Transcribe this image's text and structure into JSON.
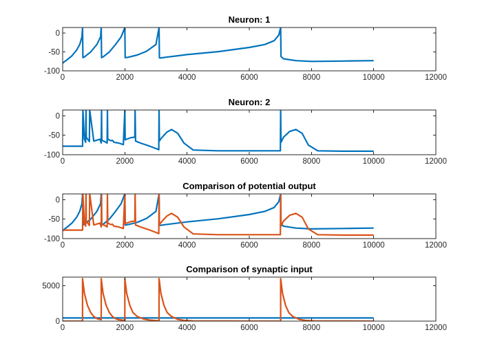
{
  "figure": {
    "background": "#ffffff"
  },
  "colors": {
    "blue": "#0072BD",
    "orange": "#D95319",
    "axis": "#262626"
  },
  "chart_data": [
    {
      "type": "line",
      "title": "Neuron: 1",
      "xlim": [
        0,
        12000
      ],
      "ylim": [
        -100,
        15
      ],
      "xticks": [
        0,
        2000,
        4000,
        6000,
        8000,
        10000,
        12000
      ],
      "yticks": [
        -100,
        -50,
        0
      ],
      "series": [
        {
          "color": "#0072BD",
          "x": [
            0,
            50,
            150,
            300,
            450,
            550,
            620,
            640,
            650,
            700,
            900,
            1100,
            1220,
            1240,
            1250,
            1300,
            1500,
            1700,
            1880,
            2000,
            2010,
            2030,
            2100,
            2400,
            2700,
            3000,
            3100,
            3110,
            3130,
            3300,
            4000,
            5000,
            6000,
            6500,
            6800,
            6950,
            7010,
            7020,
            7100,
            7500,
            8000,
            9000,
            10000
          ],
          "y": [
            -80,
            -76,
            -70,
            -60,
            -45,
            -30,
            -10,
            15,
            -65,
            -63,
            -50,
            -30,
            -10,
            15,
            -65,
            -63,
            -50,
            -30,
            -10,
            15,
            -65,
            -65,
            -64,
            -58,
            -48,
            -30,
            15,
            -65,
            -66,
            -64,
            -57,
            -49,
            -38,
            -30,
            -20,
            -5,
            15,
            -62,
            -68,
            -73,
            -75,
            -74,
            -73
          ]
        }
      ]
    },
    {
      "type": "line",
      "title": "Neuron: 2",
      "xlim": [
        0,
        12000
      ],
      "ylim": [
        -100,
        15
      ],
      "xticks": [
        0,
        2000,
        4000,
        6000,
        8000,
        10000,
        12000
      ],
      "yticks": [
        -100,
        -50,
        0
      ],
      "series": [
        {
          "color": "#0072BD",
          "x": [
            0,
            600,
            640,
            650,
            700,
            740,
            750,
            760,
            860,
            870,
            1000,
            1200,
            1240,
            1250,
            1260,
            1350,
            1430,
            1440,
            1450,
            1550,
            1600,
            1650,
            1800,
            1950,
            2000,
            2010,
            2020,
            2200,
            2300,
            2320,
            2330,
            2345,
            2500,
            2800,
            3000,
            3090,
            3100,
            3110,
            3130,
            3200,
            3350,
            3500,
            3700,
            3900,
            4200,
            5000,
            6000,
            7000,
            7010,
            7020,
            7100,
            7300,
            7500,
            7700,
            7900,
            8200,
            9000,
            10000
          ],
          "y": [
            -78,
            -78,
            -78,
            15,
            -60,
            -68,
            15,
            -55,
            -66,
            15,
            -65,
            -60,
            -70,
            15,
            -63,
            -66,
            -70,
            15,
            -60,
            -64,
            -63,
            -68,
            -70,
            -74,
            15,
            -62,
            -61,
            -56,
            -55,
            -54,
            15,
            -65,
            -70,
            -78,
            -84,
            -87,
            15,
            -65,
            -62,
            -55,
            -42,
            -35,
            -45,
            -70,
            -88,
            -90,
            -90,
            -90,
            15,
            -68,
            -55,
            -40,
            -35,
            -45,
            -75,
            -90,
            -91,
            -91
          ]
        }
      ]
    },
    {
      "type": "line",
      "title": "Comparison of potential output",
      "xlim": [
        0,
        12000
      ],
      "ylim": [
        -100,
        15
      ],
      "xticks": [
        0,
        2000,
        4000,
        6000,
        8000,
        10000,
        12000
      ],
      "yticks": [
        -100,
        -50,
        0
      ],
      "series": [
        {
          "color": "#0072BD",
          "x": [
            0,
            50,
            150,
            300,
            450,
            550,
            620,
            640,
            650,
            700,
            900,
            1100,
            1220,
            1240,
            1250,
            1300,
            1500,
            1700,
            1880,
            2000,
            2010,
            2030,
            2100,
            2400,
            2700,
            3000,
            3100,
            3110,
            3130,
            3300,
            4000,
            5000,
            6000,
            6500,
            6800,
            6950,
            7010,
            7020,
            7100,
            7500,
            8000,
            9000,
            10000
          ],
          "y": [
            -80,
            -76,
            -70,
            -60,
            -45,
            -30,
            -10,
            15,
            -65,
            -63,
            -50,
            -30,
            -10,
            15,
            -65,
            -63,
            -50,
            -30,
            -10,
            15,
            -65,
            -65,
            -64,
            -58,
            -48,
            -30,
            15,
            -65,
            -66,
            -64,
            -57,
            -49,
            -38,
            -30,
            -20,
            -5,
            15,
            -62,
            -68,
            -73,
            -75,
            -74,
            -73
          ]
        },
        {
          "color": "#D95319",
          "x": [
            0,
            600,
            640,
            650,
            700,
            740,
            750,
            760,
            860,
            870,
            1000,
            1200,
            1240,
            1250,
            1260,
            1350,
            1430,
            1440,
            1450,
            1550,
            1600,
            1650,
            1800,
            1950,
            2000,
            2010,
            2020,
            2200,
            2300,
            2320,
            2330,
            2345,
            2500,
            2800,
            3000,
            3090,
            3100,
            3110,
            3130,
            3200,
            3350,
            3500,
            3700,
            3900,
            4200,
            5000,
            6000,
            7000,
            7010,
            7020,
            7100,
            7300,
            7500,
            7700,
            7900,
            8200,
            9000,
            10000
          ],
          "y": [
            -78,
            -78,
            -78,
            15,
            -60,
            -68,
            15,
            -55,
            -66,
            15,
            -65,
            -60,
            -70,
            15,
            -63,
            -66,
            -70,
            15,
            -60,
            -64,
            -63,
            -68,
            -70,
            -74,
            15,
            -62,
            -61,
            -56,
            -55,
            -54,
            15,
            -65,
            -70,
            -78,
            -84,
            -87,
            15,
            -65,
            -62,
            -55,
            -42,
            -35,
            -45,
            -70,
            -88,
            -90,
            -90,
            -90,
            15,
            -68,
            -55,
            -40,
            -35,
            -45,
            -75,
            -90,
            -91,
            -91
          ]
        }
      ]
    },
    {
      "type": "line",
      "title": "Comparison of synaptic input",
      "xlim": [
        0,
        12000
      ],
      "ylim": [
        0,
        6200
      ],
      "xticks": [
        0,
        2000,
        4000,
        6000,
        8000,
        10000,
        12000
      ],
      "yticks": [
        0,
        5000
      ],
      "series": [
        {
          "color": "#0072BD",
          "x": [
            0,
            10000
          ],
          "y": [
            450,
            450
          ]
        },
        {
          "color": "#D95319",
          "x": [
            0,
            640,
            640,
            700,
            800,
            900,
            1000,
            1100,
            1240,
            1240,
            1300,
            1400,
            1500,
            1600,
            1700,
            1800,
            2000,
            2000,
            2060,
            2160,
            2260,
            2400,
            2600,
            2800,
            3000,
            3100,
            3100,
            3160,
            3260,
            3360,
            3500,
            3700,
            3900,
            4200,
            7010,
            7010,
            7070,
            7170,
            7270,
            7400,
            7600,
            7800,
            8100,
            10000
          ],
          "y": [
            0,
            0,
            6000,
            3900,
            2200,
            1200,
            650,
            350,
            200,
            6000,
            3900,
            2200,
            1200,
            650,
            350,
            200,
            100,
            6000,
            3900,
            2200,
            1200,
            650,
            300,
            150,
            80,
            50,
            6000,
            3900,
            2200,
            1200,
            650,
            250,
            100,
            30,
            0,
            6000,
            3900,
            2200,
            1200,
            650,
            250,
            100,
            30,
            0
          ]
        }
      ]
    }
  ]
}
